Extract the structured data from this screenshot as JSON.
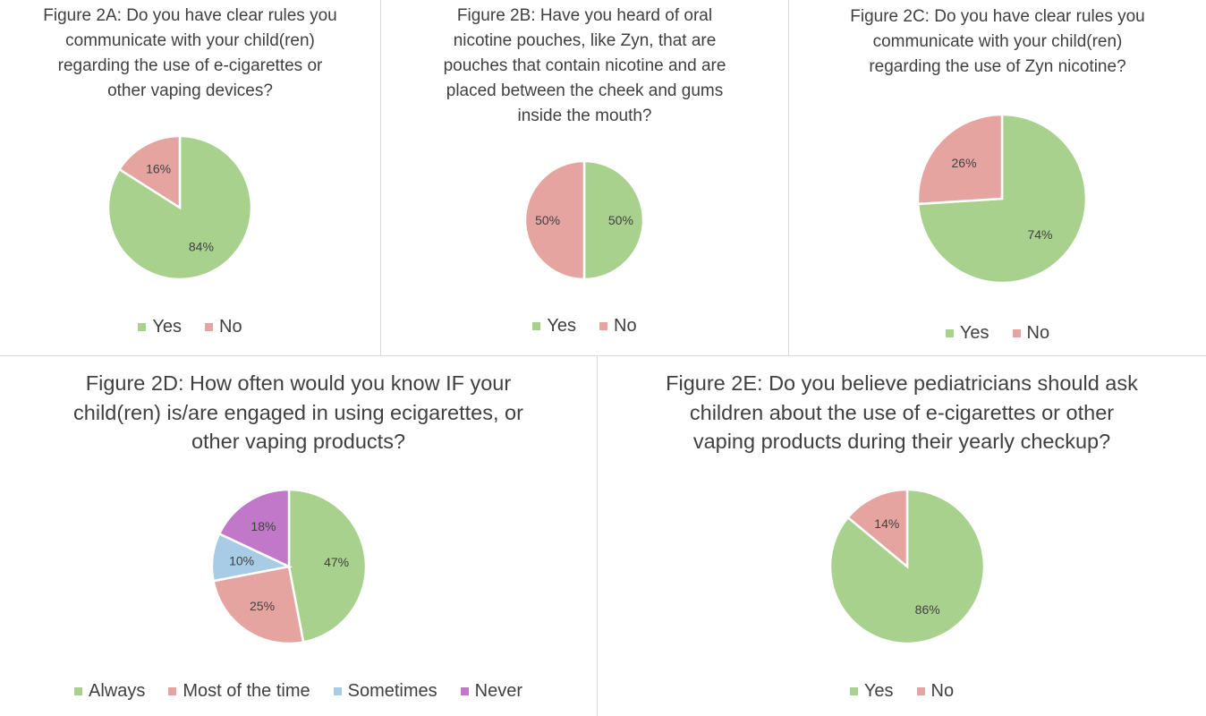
{
  "colors": {
    "green": "#a9d18e",
    "pink": "#e6a4a0",
    "blue": "#a8cbe6",
    "purple": "#c178c8"
  },
  "chart_data": [
    {
      "id": "2a",
      "type": "pie",
      "title": "Figure 2A: Do you have clear rules you\ncommunicate with your child(ren)\nregarding the use of e-cigarettes or\nother vaping devices?",
      "categories": [
        "Yes",
        "No"
      ],
      "values": [
        84,
        16
      ],
      "labels": [
        "84%",
        "16%"
      ],
      "colors": [
        "#a9d18e",
        "#e6a4a0"
      ],
      "legend": "bottom"
    },
    {
      "id": "2b",
      "type": "pie",
      "title": "Figure 2B: Have you heard of oral\nnicotine pouches, like Zyn, that are\npouches that contain nicotine and are\nplaced between the cheek and gums\ninside the mouth?",
      "categories": [
        "Yes",
        "No"
      ],
      "values": [
        50,
        50
      ],
      "labels": [
        "50%",
        "50%"
      ],
      "colors": [
        "#a9d18e",
        "#e6a4a0"
      ],
      "legend": "bottom"
    },
    {
      "id": "2c",
      "type": "pie",
      "title": "Figure 2C: Do you have clear rules you\ncommunicate with your child(ren)\nregarding the use of Zyn nicotine?",
      "categories": [
        "Yes",
        "No"
      ],
      "values": [
        74,
        26
      ],
      "labels": [
        "74%",
        "26%"
      ],
      "colors": [
        "#a9d18e",
        "#e6a4a0"
      ],
      "legend": "bottom"
    },
    {
      "id": "2d",
      "type": "pie",
      "title": "Figure 2D: How often would you know IF your\nchild(ren) is/are engaged in using ecigarettes, or\nother vaping products?",
      "categories": [
        "Always",
        "Most of the time",
        "Sometimes",
        "Never"
      ],
      "values": [
        47,
        25,
        10,
        18
      ],
      "labels": [
        "47%",
        "25%",
        "10%",
        "18%"
      ],
      "colors": [
        "#a9d18e",
        "#e6a4a0",
        "#a8cbe6",
        "#c178c8"
      ],
      "legend": "bottom"
    },
    {
      "id": "2e",
      "type": "pie",
      "title": "Figure 2E: Do you believe pediatricians should ask\nchildren about the use of e-cigarettes or other\nvaping products during their yearly checkup?",
      "categories": [
        "Yes",
        "No"
      ],
      "values": [
        86,
        14
      ],
      "labels": [
        "86%",
        "14%"
      ],
      "colors": [
        "#a9d18e",
        "#e6a4a0"
      ],
      "legend": "bottom"
    }
  ]
}
